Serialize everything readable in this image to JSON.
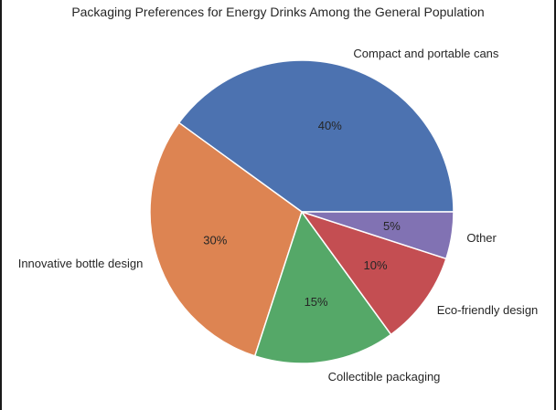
{
  "chart_data": {
    "type": "pie",
    "title": "Packaging Preferences for Energy Drinks Among the General Population",
    "categories": [
      "Compact and portable cans",
      "Innovative bottle design",
      "Collectible packaging",
      "Eco-friendly design",
      "Other"
    ],
    "values": [
      40,
      30,
      15,
      10,
      5
    ],
    "value_labels": [
      "40%",
      "30%",
      "15%",
      "10%",
      "5%"
    ],
    "colors": [
      "#4c72b0",
      "#dd8452",
      "#55a868",
      "#c44e52",
      "#8172b3"
    ],
    "start_angle_deg": 0,
    "direction": "counterclockwise",
    "legend": "none"
  }
}
